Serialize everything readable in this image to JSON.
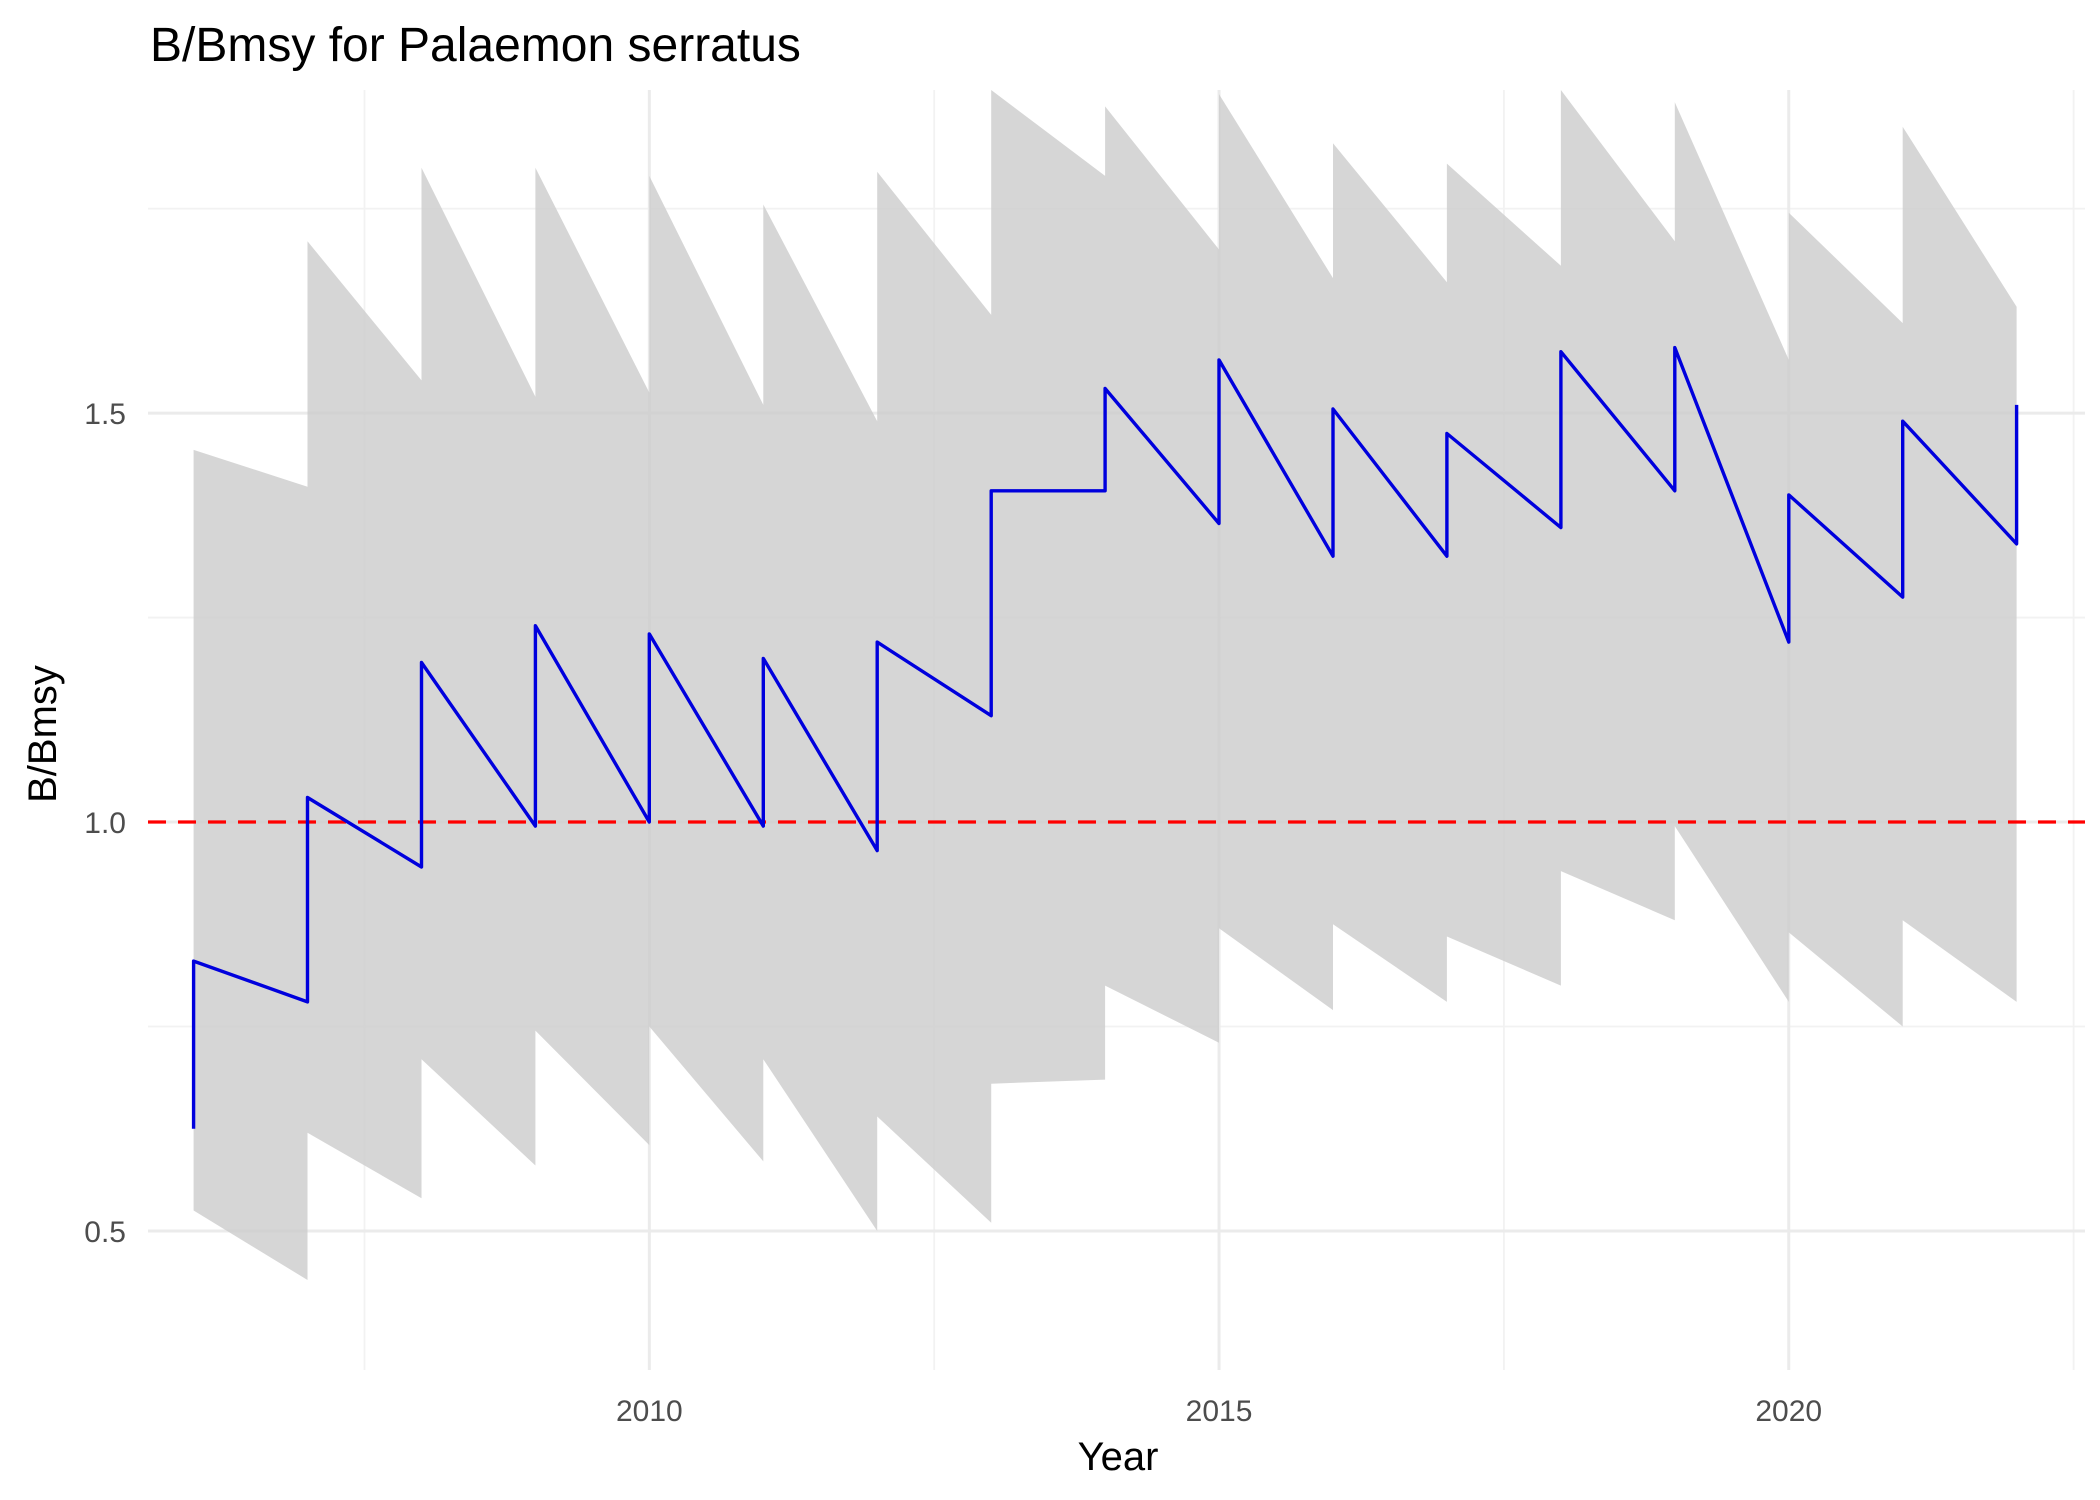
{
  "chart_data": {
    "type": "line",
    "title": "B/Bmsy for Palaemon serratus",
    "xlabel": "Year",
    "ylabel": "B/Bmsy",
    "xlim": [
      2005.6,
      2022.6
    ],
    "ylim": [
      0.33,
      1.895
    ],
    "x_ticks": [
      2010,
      2015,
      2020
    ],
    "x_minor_ticks": [
      2007.5,
      2012.5,
      2017.5,
      2022.5
    ],
    "y_ticks": [
      0.5,
      1.0,
      1.5
    ],
    "y_tick_labels": [
      "0.5",
      "1.0",
      "1.5"
    ],
    "y_minor_ticks": [
      0.75,
      1.25,
      1.75
    ],
    "grid": true,
    "legend": "none",
    "colors": {
      "line": "#0000dd",
      "band": "#cccccc",
      "reference": "#ff0000"
    },
    "reference_line": {
      "y": 1.0,
      "style": "dashed",
      "color": "#ff0000"
    },
    "series": [
      {
        "segments": [
          {
            "year": 2006,
            "start": 0.83,
            "end": 0.78,
            "lower_start": 0.525,
            "lower_end": 0.44,
            "upper_start": 1.455,
            "upper_end": 1.41
          },
          {
            "year": 2007,
            "start": 1.03,
            "end": 0.945,
            "lower_start": 0.62,
            "lower_end": 0.54,
            "upper_start": 1.71,
            "upper_end": 1.54
          },
          {
            "year": 2008,
            "start": 1.195,
            "end": 0.995,
            "lower_start": 0.71,
            "lower_end": 0.58,
            "upper_start": 1.8,
            "upper_end": 1.52
          },
          {
            "year": 2009,
            "start": 1.24,
            "end": 1.0,
            "lower_start": 0.745,
            "lower_end": 0.605,
            "upper_start": 1.8,
            "upper_end": 1.525
          },
          {
            "year": 2010,
            "start": 1.23,
            "end": 0.995,
            "lower_start": 0.75,
            "lower_end": 0.585,
            "upper_start": 1.79,
            "upper_end": 1.51
          },
          {
            "year": 2011,
            "start": 1.2,
            "end": 0.965,
            "lower_start": 0.71,
            "lower_end": 0.5,
            "upper_start": 1.755,
            "upper_end": 1.49
          },
          {
            "year": 2012,
            "start": 1.22,
            "end": 1.13,
            "lower_start": 0.64,
            "lower_end": 0.51,
            "upper_start": 1.795,
            "upper_end": 1.62
          },
          {
            "year": 2013,
            "start": 1.405,
            "end": 1.405,
            "lower_start": 0.68,
            "lower_end": 0.685,
            "upper_start": 1.895,
            "upper_end": 1.79
          },
          {
            "year": 2014,
            "start": 1.53,
            "end": 1.365,
            "lower_start": 0.8,
            "lower_end": 0.73,
            "upper_start": 1.875,
            "upper_end": 1.7
          },
          {
            "year": 2015,
            "start": 1.565,
            "end": 1.325,
            "lower_start": 0.87,
            "lower_end": 0.77,
            "upper_start": 1.89,
            "upper_end": 1.665
          },
          {
            "year": 2016,
            "start": 1.505,
            "end": 1.325,
            "lower_start": 0.875,
            "lower_end": 0.78,
            "upper_start": 1.83,
            "upper_end": 1.66
          },
          {
            "year": 2017,
            "start": 1.475,
            "end": 1.36,
            "lower_start": 0.86,
            "lower_end": 0.8,
            "upper_start": 1.805,
            "upper_end": 1.68
          },
          {
            "year": 2018,
            "start": 1.575,
            "end": 1.405,
            "lower_start": 0.94,
            "lower_end": 0.88,
            "upper_start": 1.895,
            "upper_end": 1.71
          },
          {
            "year": 2019,
            "start": 1.58,
            "end": 1.22,
            "lower_start": 0.995,
            "lower_end": 0.78,
            "upper_start": 1.88,
            "upper_end": 1.565
          },
          {
            "year": 2020,
            "start": 1.4,
            "end": 1.275,
            "lower_start": 0.865,
            "lower_end": 0.75,
            "upper_start": 1.745,
            "upper_end": 1.61
          },
          {
            "year": 2021,
            "start": 1.49,
            "end": 1.34,
            "lower_start": 0.88,
            "lower_end": 0.78,
            "upper_start": 1.85,
            "upper_end": 1.63
          }
        ],
        "last_year": 2022,
        "last_value": 1.51,
        "first_value": 0.625
      }
    ]
  }
}
